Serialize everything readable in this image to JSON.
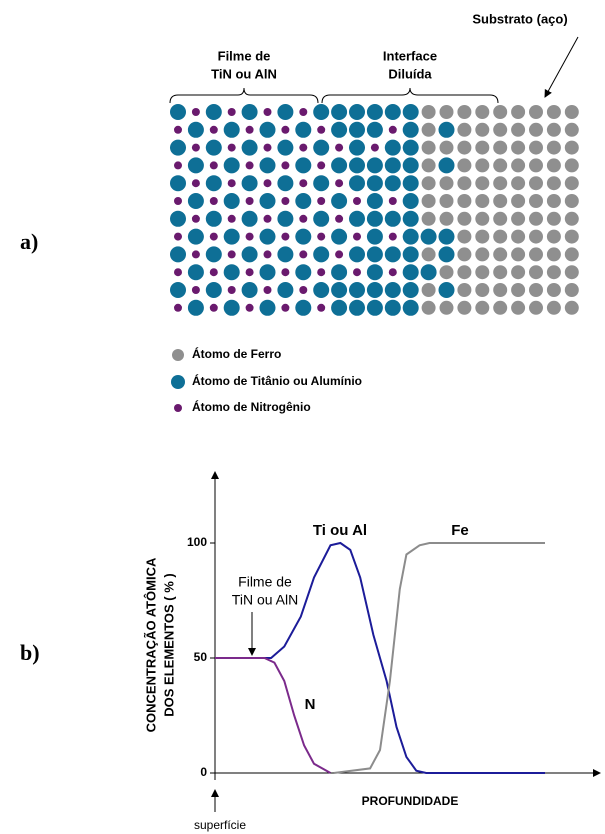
{
  "figure_a": {
    "label": "a)",
    "substrate_label": "Substrato (aço)",
    "film_label": [
      "Filme de",
      "TiN ou AlN"
    ],
    "interface_label": [
      "Interface",
      "Diluída"
    ],
    "legend": [
      "Átomo de Ferro",
      "Átomo de Titânio ou Alumínio",
      "Átomo de Nitrogênio"
    ]
  },
  "figure_b_label": "b)",
  "chart_data": {
    "type": "line",
    "y_label": [
      "CONCENTRAÇÃO ATÔMICA",
      "DOS ELEMENTOS ( % )"
    ],
    "x_label": "PROFUNDIDADE",
    "film_annotation": [
      "Filme de",
      "TiN ou AlN"
    ],
    "surface_annotation": "superfície",
    "xlim": [
      0,
      100
    ],
    "ylim": [
      0,
      100
    ],
    "yticks": [
      0,
      50,
      100
    ],
    "series": [
      {
        "name": "Ti ou Al",
        "color": "#1c1c99",
        "x": [
          0,
          17,
          21,
          26,
          30,
          35,
          38,
          41,
          44,
          48,
          52,
          55,
          58,
          61,
          64,
          100
        ],
        "values": [
          50,
          50,
          55,
          68,
          85,
          99,
          100,
          97,
          85,
          60,
          40,
          20,
          7,
          1,
          0,
          0
        ]
      },
      {
        "name": "Fe",
        "color": "#8c8c8c",
        "x": [
          36,
          47,
          50,
          53,
          56,
          58,
          62,
          65,
          100
        ],
        "values": [
          0,
          2,
          10,
          40,
          80,
          95,
          99,
          100,
          100
        ]
      },
      {
        "name": "N",
        "color": "#7b2a8b",
        "x": [
          0,
          15,
          18,
          21,
          24,
          27,
          30,
          35
        ],
        "values": [
          50,
          50,
          48,
          40,
          25,
          12,
          4,
          0
        ]
      }
    ]
  }
}
